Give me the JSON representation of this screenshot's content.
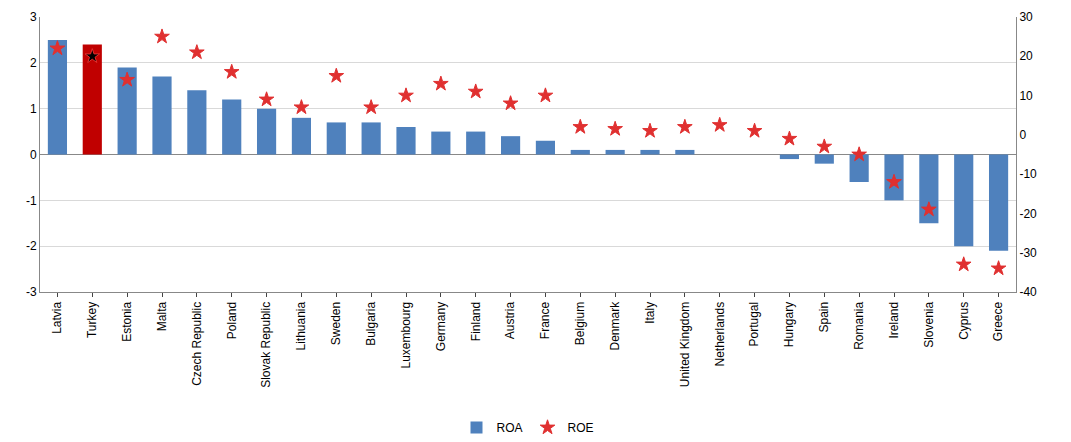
{
  "chart_data": {
    "type": "bar",
    "categories": [
      "Latvia",
      "Turkey",
      "Estonia",
      "Malta",
      "Czech Republic",
      "Poland",
      "Slovak Republic",
      "Lithuania",
      "Sweden",
      "Bulgaria",
      "Luxembourg",
      "Germany",
      "Finland",
      "Austria",
      "France",
      "Belgium",
      "Denmark",
      "Italy",
      "United Kingdom",
      "Netherlands",
      "Portugal",
      "Hungary",
      "Spain",
      "Romania",
      "Ireland",
      "Slovenia",
      "Cyprus",
      "Greece"
    ],
    "series": [
      {
        "name": "ROA",
        "type": "bar",
        "color": "#4f81bd",
        "colors": [
          "#4f81bd",
          "#c00000",
          "#4f81bd",
          "#4f81bd",
          "#4f81bd",
          "#4f81bd",
          "#4f81bd",
          "#4f81bd",
          "#4f81bd",
          "#4f81bd",
          "#4f81bd",
          "#4f81bd",
          "#4f81bd",
          "#4f81bd",
          "#4f81bd",
          "#4f81bd",
          "#4f81bd",
          "#4f81bd",
          "#4f81bd",
          "#4f81bd",
          "#4f81bd",
          "#4f81bd",
          "#4f81bd",
          "#4f81bd",
          "#4f81bd",
          "#4f81bd",
          "#4f81bd",
          "#4f81bd"
        ],
        "values": [
          2.5,
          2.4,
          1.9,
          1.7,
          1.4,
          1.2,
          1.0,
          0.8,
          0.7,
          0.7,
          0.6,
          0.5,
          0.5,
          0.4,
          0.3,
          0.1,
          0.1,
          0.1,
          0.1,
          0.0,
          0.0,
          -0.1,
          -0.2,
          -0.6,
          -1.0,
          -1.5,
          -2.0,
          -2.1
        ]
      },
      {
        "name": "ROE",
        "type": "scatter",
        "axis": "y2",
        "marker": "star",
        "color": "#e03030",
        "colors": [
          "#e03030",
          "#000000",
          "#e03030",
          "#e03030",
          "#e03030",
          "#e03030",
          "#e03030",
          "#e03030",
          "#e03030",
          "#e03030",
          "#e03030",
          "#e03030",
          "#e03030",
          "#e03030",
          "#e03030",
          "#e03030",
          "#e03030",
          "#e03030",
          "#e03030",
          "#e03030",
          "#e03030",
          "#e03030",
          "#e03030",
          "#e03030",
          "#e03030",
          "#e03030",
          "#e03030",
          "#e03030"
        ],
        "values": [
          22,
          20,
          14,
          25,
          21,
          16,
          9,
          7,
          15,
          7,
          10,
          13,
          11,
          8,
          10,
          2,
          1.5,
          1,
          2,
          2.5,
          1,
          -1,
          -3,
          -5,
          -12,
          -19,
          -33,
          -34
        ]
      }
    ],
    "ylim": [
      -3,
      3
    ],
    "yticks": [
      -3,
      -2,
      -1,
      0,
      1,
      2,
      3
    ],
    "y2lim": [
      -40,
      30
    ],
    "y2ticks": [
      -40,
      -30,
      -20,
      -10,
      0,
      10,
      20,
      30
    ],
    "grid": true,
    "legend": "bottom"
  }
}
